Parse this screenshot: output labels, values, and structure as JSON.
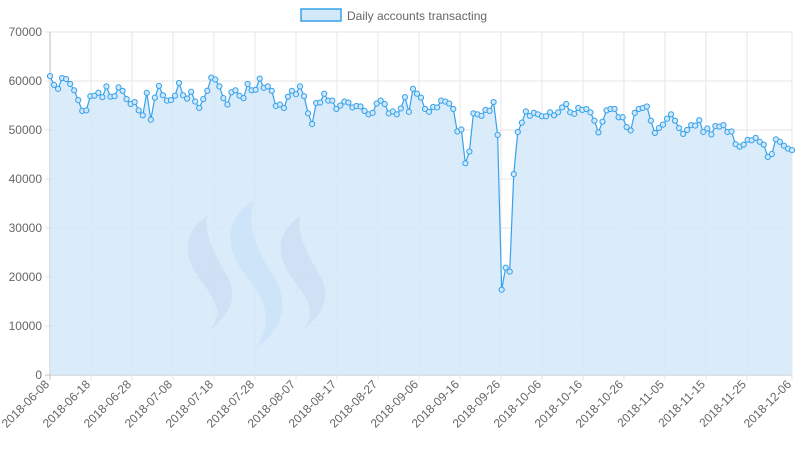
{
  "legend": {
    "label": "Daily accounts transacting"
  },
  "colors": {
    "line": "#36a2eb",
    "fill": "#d3e8f9",
    "grid": "#e6e6e6",
    "axis": "#bdbdbd",
    "logo_light": "#9cc4f6",
    "logo_dark": "#a6b2cf"
  },
  "logo": {
    "icon": "steem-logo-icon"
  },
  "chart_data": {
    "type": "area",
    "title": "",
    "xlabel": "",
    "ylabel": "",
    "ylim": [
      0,
      70000
    ],
    "yticks": [
      0,
      10000,
      20000,
      30000,
      40000,
      50000,
      60000,
      70000
    ],
    "grid": true,
    "legend_position": "top-center",
    "x_start": "2018-06-08",
    "x_end": "2018-12-06",
    "xtick_labels": [
      "2018-06-08",
      "2018-06-18",
      "2018-06-28",
      "2018-07-08",
      "2018-07-18",
      "2018-07-28",
      "2018-08-07",
      "2018-08-17",
      "2018-08-27",
      "2018-09-06",
      "2018-09-16",
      "2018-09-26",
      "2018-10-06",
      "2018-10-16",
      "2018-10-26",
      "2018-11-05",
      "2018-11-15",
      "2018-11-25",
      "2018-12-06"
    ],
    "series": [
      {
        "name": "Daily accounts transacting",
        "values": [
          61000,
          59200,
          58400,
          60600,
          60400,
          59400,
          58100,
          56100,
          53900,
          54000,
          56900,
          57000,
          57600,
          56700,
          58900,
          56800,
          56900,
          58700,
          58000,
          56300,
          55300,
          55700,
          54000,
          53000,
          57600,
          52100,
          56600,
          59000,
          57100,
          56000,
          56100,
          57000,
          59600,
          57100,
          56400,
          57800,
          55800,
          54500,
          56300,
          58000,
          60700,
          60300,
          58900,
          56500,
          55200,
          57700,
          58100,
          57000,
          56500,
          59400,
          58100,
          58200,
          60500,
          58600,
          58900,
          58000,
          54900,
          55200,
          54500,
          56800,
          58000,
          57300,
          58900,
          56900,
          53400,
          51200,
          55500,
          55600,
          57400,
          56000,
          56000,
          54300,
          55000,
          55800,
          55600,
          54600,
          54900,
          54800,
          53900,
          53200,
          53500,
          55400,
          56000,
          55300,
          53400,
          53800,
          53200,
          54400,
          56700,
          53700,
          58400,
          57400,
          56600,
          54300,
          53700,
          54700,
          54600,
          56000,
          55800,
          55400,
          54300,
          49700,
          50100,
          43200,
          45600,
          53400,
          53200,
          52900,
          54100,
          53900,
          55700,
          49000,
          17400,
          21900,
          21100,
          41000,
          49600,
          51500,
          53800,
          52900,
          53500,
          53200,
          52800,
          52800,
          53600,
          53000,
          53600,
          54600,
          55300,
          53600,
          53300,
          54500,
          54100,
          54300,
          53600,
          51900,
          49500,
          51700,
          54000,
          54300,
          54300,
          52600,
          52600,
          50600,
          49900,
          53500,
          54300,
          54500,
          54800,
          51900,
          49400,
          50400,
          51100,
          52300,
          53200,
          51900,
          50400,
          49200,
          50000,
          51000,
          50900,
          52000,
          49600,
          50300,
          49100,
          50800,
          50700,
          51000,
          49600,
          49700,
          47100,
          46600,
          47000,
          48000,
          47900,
          48400,
          47600,
          47000,
          44500,
          45100,
          48100,
          47600,
          46800,
          46200,
          45900
        ]
      }
    ]
  }
}
